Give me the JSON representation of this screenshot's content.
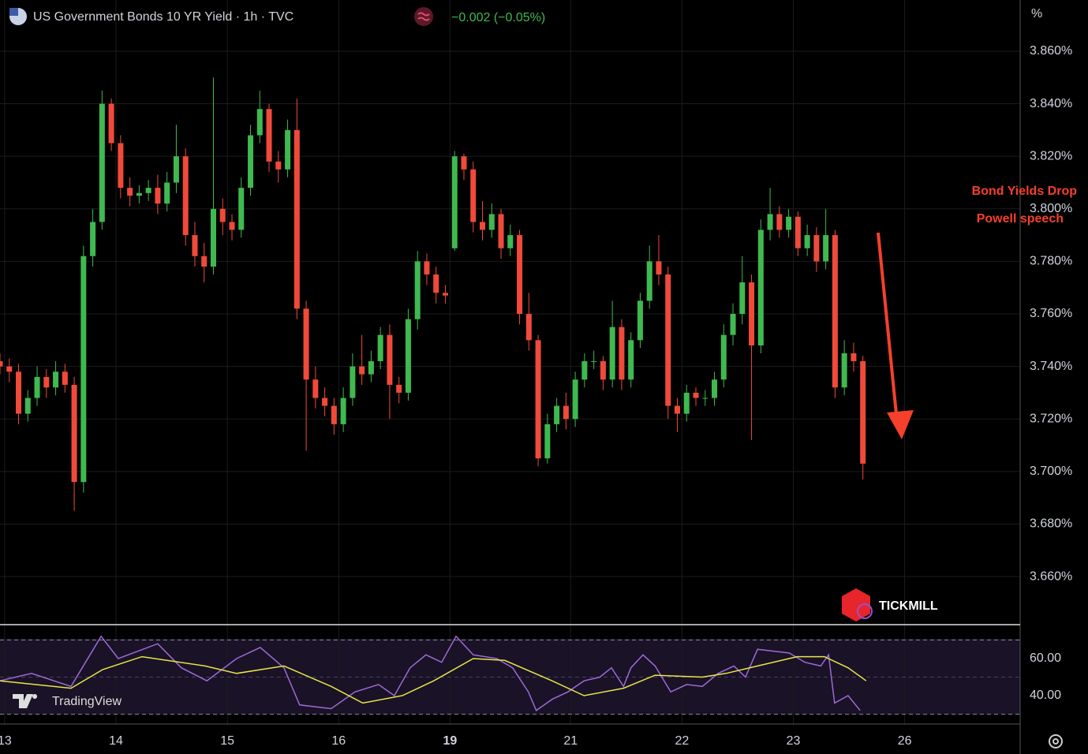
{
  "chart_data": {
    "type": "candlestick",
    "title": "US Government Bonds 10 YR Yield · 1h · TVC",
    "change": "−0.002 (−0.05%)",
    "unit": "%",
    "annotation": [
      "Bond Yields Drop",
      "Powell speech"
    ],
    "brands": [
      "TICKMILL",
      "TradingView"
    ],
    "up_color": "#3fb950",
    "down_color": "#f04a3a",
    "grid": true,
    "x": [
      0,
      2,
      4,
      6,
      8,
      10,
      12,
      14,
      16,
      18,
      20,
      22,
      24,
      26,
      28,
      30,
      32,
      34,
      36,
      38,
      40,
      42,
      44,
      46,
      48,
      50,
      52,
      54,
      56,
      58,
      60,
      62,
      64,
      66,
      68,
      70,
      72,
      74,
      76,
      78,
      80,
      82,
      84,
      86,
      88,
      90,
      92,
      94,
      96,
      98,
      100,
      102,
      104,
      106,
      108,
      110,
      112,
      114,
      116,
      118,
      120,
      122,
      124,
      126,
      128,
      130,
      132,
      134,
      136,
      138,
      140,
      142,
      144,
      146,
      148,
      150,
      152,
      154,
      156,
      158,
      160,
      162,
      164,
      166,
      168,
      170,
      172,
      174,
      176,
      178,
      180,
      182,
      184,
      186
    ],
    "open": [
      3.742,
      3.74,
      3.738,
      3.722,
      3.728,
      3.736,
      3.732,
      3.738,
      3.733,
      3.696,
      3.782,
      3.795,
      3.84,
      3.825,
      3.808,
      3.805,
      3.806,
      3.808,
      3.802,
      3.81,
      3.82,
      3.79,
      3.782,
      3.778,
      3.8,
      3.795,
      3.792,
      3.808,
      3.828,
      3.838,
      3.818,
      3.815,
      3.83,
      3.762,
      3.735,
      3.728,
      3.725,
      3.718,
      3.728,
      3.74,
      3.737,
      3.742,
      3.752,
      3.733,
      3.73,
      3.758,
      3.78,
      3.775,
      3.768,
      3.785,
      3.82,
      3.815,
      3.795,
      3.792,
      3.798,
      3.785,
      3.79,
      3.76,
      3.75,
      3.705,
      3.718,
      3.725,
      3.72,
      3.735,
      3.742,
      3.742,
      3.735,
      3.755,
      3.735,
      3.75,
      3.765,
      3.78,
      3.775,
      3.725,
      3.722,
      3.73,
      3.728,
      3.728,
      3.735,
      3.752,
      3.76,
      3.772,
      3.748,
      3.792,
      3.798,
      3.792,
      3.797,
      3.785,
      3.79,
      3.78,
      3.79,
      3.732,
      3.745,
      3.742
    ],
    "high": [
      3.745,
      3.743,
      3.741,
      3.731,
      3.74,
      3.739,
      3.742,
      3.741,
      3.736,
      3.786,
      3.8,
      3.845,
      3.842,
      3.828,
      3.812,
      3.809,
      3.811,
      3.813,
      3.814,
      3.832,
      3.823,
      3.795,
      3.787,
      3.85,
      3.804,
      3.798,
      3.812,
      3.832,
      3.845,
      3.84,
      3.822,
      3.834,
      3.842,
      3.765,
      3.74,
      3.732,
      3.728,
      3.732,
      3.745,
      3.752,
      3.746,
      3.755,
      3.756,
      3.736,
      3.762,
      3.784,
      3.783,
      3.778,
      3.771,
      3.822,
      3.821,
      3.818,
      3.803,
      3.802,
      3.8,
      3.794,
      3.792,
      3.768,
      3.752,
      3.722,
      3.728,
      3.73,
      3.738,
      3.745,
      3.746,
      3.744,
      3.765,
      3.758,
      3.753,
      3.768,
      3.786,
      3.79,
      3.778,
      3.728,
      3.733,
      3.732,
      3.731,
      3.738,
      3.756,
      3.764,
      3.782,
      3.775,
      3.796,
      3.808,
      3.801,
      3.8,
      3.799,
      3.794,
      3.793,
      3.8,
      3.792,
      3.75,
      3.749,
      3.744
    ],
    "low": [
      3.737,
      3.734,
      3.718,
      3.719,
      3.725,
      3.728,
      3.729,
      3.73,
      3.685,
      3.692,
      3.778,
      3.792,
      3.822,
      3.804,
      3.801,
      3.802,
      3.803,
      3.798,
      3.799,
      3.806,
      3.786,
      3.778,
      3.772,
      3.775,
      3.79,
      3.788,
      3.789,
      3.805,
      3.825,
      3.814,
      3.81,
      3.812,
      3.758,
      3.708,
      3.724,
      3.721,
      3.714,
      3.715,
      3.725,
      3.733,
      3.734,
      3.739,
      3.72,
      3.726,
      3.727,
      3.754,
      3.771,
      3.764,
      3.764,
      3.784,
      3.811,
      3.791,
      3.788,
      3.789,
      3.781,
      3.782,
      3.756,
      3.746,
      3.702,
      3.703,
      3.715,
      3.716,
      3.717,
      3.732,
      3.739,
      3.731,
      3.732,
      3.731,
      3.732,
      3.747,
      3.762,
      3.771,
      3.72,
      3.715,
      3.719,
      3.725,
      3.725,
      3.725,
      3.732,
      3.748,
      3.756,
      3.712,
      3.745,
      3.788,
      3.789,
      3.789,
      3.782,
      3.782,
      3.776,
      3.777,
      3.728,
      3.729,
      3.738,
      3.697
    ],
    "close": [
      3.74,
      3.738,
      3.722,
      3.728,
      3.736,
      3.732,
      3.738,
      3.733,
      3.696,
      3.782,
      3.795,
      3.84,
      3.825,
      3.808,
      3.805,
      3.806,
      3.808,
      3.802,
      3.81,
      3.82,
      3.79,
      3.782,
      3.778,
      3.8,
      3.795,
      3.792,
      3.808,
      3.828,
      3.838,
      3.818,
      3.815,
      3.83,
      3.762,
      3.735,
      3.728,
      3.725,
      3.718,
      3.728,
      3.74,
      3.737,
      3.742,
      3.752,
      3.733,
      3.73,
      3.758,
      3.78,
      3.775,
      3.768,
      3.767,
      3.82,
      3.815,
      3.795,
      3.792,
      3.798,
      3.785,
      3.79,
      3.76,
      3.75,
      3.705,
      3.718,
      3.725,
      3.72,
      3.735,
      3.742,
      3.742,
      3.735,
      3.755,
      3.735,
      3.75,
      3.765,
      3.78,
      3.775,
      3.725,
      3.722,
      3.73,
      3.728,
      3.728,
      3.735,
      3.752,
      3.76,
      3.772,
      3.748,
      3.792,
      3.798,
      3.792,
      3.797,
      3.785,
      3.79,
      3.78,
      3.79,
      3.732,
      3.745,
      3.742,
      3.703
    ],
    "xlim": [
      0,
      220
    ],
    "xticks": [
      {
        "value": 1,
        "label": "13"
      },
      {
        "value": 25,
        "label": "14"
      },
      {
        "value": 49,
        "label": "15"
      },
      {
        "value": 73,
        "label": "16"
      },
      {
        "value": 97,
        "label": "19"
      },
      {
        "value": 123,
        "label": "21"
      },
      {
        "value": 147,
        "label": "22"
      },
      {
        "value": 171,
        "label": "23"
      },
      {
        "value": 195,
        "label": "26"
      }
    ],
    "ylim": [
      3.6417,
      3.8795
    ],
    "yticks": [
      {
        "value": 3.86,
        "label": "3.860%"
      },
      {
        "value": 3.84,
        "label": "3.840%"
      },
      {
        "value": 3.82,
        "label": "3.820%"
      },
      {
        "value": 3.8,
        "label": "3.800%"
      },
      {
        "value": 3.78,
        "label": "3.780%"
      },
      {
        "value": 3.76,
        "label": "3.760%"
      },
      {
        "value": 3.74,
        "label": "3.740%"
      },
      {
        "value": 3.72,
        "label": "3.720%"
      },
      {
        "value": 3.7,
        "label": "3.700%"
      },
      {
        "value": 3.68,
        "label": "3.680%"
      },
      {
        "value": 3.66,
        "label": "3.660%"
      }
    ],
    "rsi": {
      "color": "#9c6ad8",
      "x": [
        0,
        6.8,
        15.3,
        21.8,
        25.5,
        34,
        39.1,
        44.6,
        51,
        56.1,
        61.2,
        64.6,
        71.4,
        76.5,
        81.6,
        85,
        88.4,
        91.8,
        95.2,
        98.3,
        102,
        107.1,
        110.5,
        113.9,
        115.6,
        119,
        122.4,
        125.9,
        129.3,
        131.8,
        134.4,
        136,
        138.6,
        141.2,
        144.6,
        148,
        151.4,
        154.8,
        158.2,
        160.7,
        163.3,
        166.7,
        170.1,
        173.5,
        176.9,
        178.6,
        179.9,
        182.8,
        185.4
      ],
      "values": [
        48,
        52,
        45,
        72,
        60,
        68,
        55,
        48,
        60,
        66,
        55,
        35,
        33,
        42,
        46,
        40,
        55,
        62,
        58,
        72,
        62,
        60,
        55,
        42,
        32,
        38,
        42,
        48,
        50,
        55,
        45,
        55,
        62,
        56,
        42,
        46,
        45,
        52,
        56,
        50,
        65,
        64,
        63,
        58,
        56,
        62,
        36,
        40,
        32
      ]
    },
    "rsi_ma": {
      "color": "#e6e64a",
      "x": [
        0,
        15.3,
        22.1,
        30.6,
        44.2,
        51,
        61.2,
        71.4,
        78.2,
        86.7,
        93.5,
        102,
        108.8,
        119,
        125.9,
        134.4,
        141.2,
        151.4,
        156.5,
        163.3,
        171.8,
        177.7,
        182.8,
        186.7
      ],
      "values": [
        48,
        44,
        54,
        61,
        56,
        52,
        56,
        45,
        36,
        40,
        48,
        60,
        59,
        48,
        40,
        44,
        51,
        50,
        52,
        56,
        61,
        61,
        55,
        48
      ]
    },
    "rsi_ylim": [
      24.7,
      77
    ],
    "rsi_yticks": [
      {
        "value": 60,
        "label": "60.00"
      },
      {
        "value": 40,
        "label": "40.00"
      }
    ],
    "rsi_levels": [
      70,
      50,
      30
    ]
  }
}
